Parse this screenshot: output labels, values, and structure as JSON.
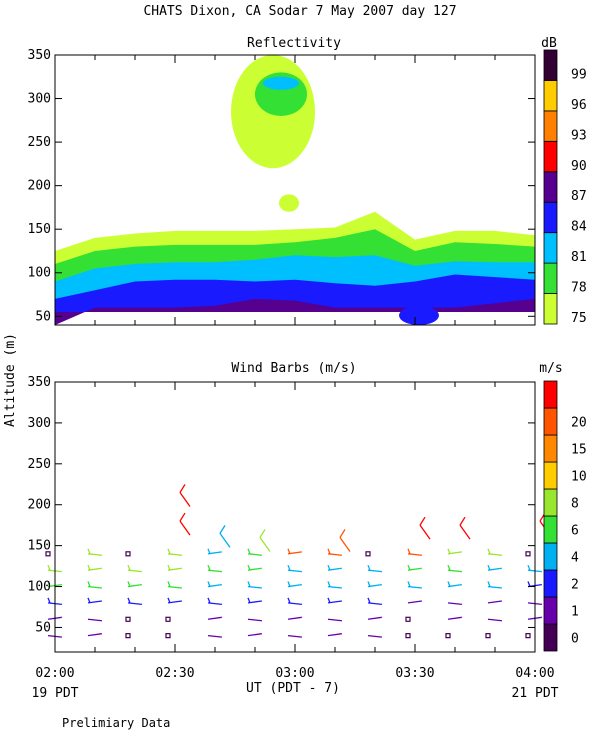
{
  "header": {
    "title": "CHATS Dixon, CA  Sodar   7 May 2007  day 127",
    "footer_note": "Prelimiary Data"
  },
  "chart_data": [
    {
      "type": "heatmap",
      "title": "Reflectivity",
      "ylabel": "Altitude (m)",
      "ylim": [
        40,
        350
      ],
      "yticks": [
        50,
        100,
        150,
        200,
        250,
        300,
        350
      ],
      "colorbar_unit": "dB",
      "colorbar_levels": [
        "75",
        "78",
        "81",
        "84",
        "87",
        "90",
        "93",
        "96",
        "99"
      ],
      "colorbar_colors": [
        "#ccff33",
        "#33e033",
        "#00bfff",
        "#1a1aff",
        "#55008f",
        "#ff0000",
        "#ff7f00",
        "#ffcc00",
        "#330033"
      ],
      "times": [
        0,
        10,
        20,
        30,
        40,
        50,
        60,
        70,
        80,
        90,
        100,
        110,
        120
      ],
      "contours": [
        {
          "level": "75",
          "top": [
            125,
            140,
            145,
            148,
            148,
            148,
            150,
            152,
            170,
            138,
            148,
            148,
            143
          ]
        },
        {
          "level": "78",
          "top": [
            110,
            125,
            130,
            132,
            132,
            132,
            135,
            140,
            150,
            125,
            135,
            133,
            130
          ]
        },
        {
          "level": "81",
          "top": [
            90,
            105,
            110,
            112,
            112,
            115,
            120,
            118,
            120,
            108,
            113,
            112,
            112
          ]
        },
        {
          "level": "84",
          "top": [
            70,
            80,
            90,
            92,
            92,
            90,
            92,
            88,
            85,
            90,
            98,
            95,
            92
          ]
        },
        {
          "level": "87",
          "top": [
            40,
            60,
            60,
            60,
            62,
            70,
            68,
            60,
            60,
            60,
            60,
            65,
            70
          ]
        }
      ],
      "patches": [
        {
          "level": "75",
          "time_range": [
            44,
            65
          ],
          "alt_range": [
            220,
            350
          ]
        },
        {
          "level": "78",
          "time_range": [
            50,
            63
          ],
          "alt_range": [
            280,
            330
          ]
        },
        {
          "level": "81",
          "time_range": [
            52,
            61
          ],
          "alt_range": [
            310,
            325
          ]
        },
        {
          "level": "75",
          "time_range": [
            56,
            61
          ],
          "alt_range": [
            170,
            190
          ]
        },
        {
          "level": "84",
          "time_range": [
            86,
            96
          ],
          "alt_range": [
            40,
            62
          ]
        }
      ]
    },
    {
      "type": "scatter",
      "title": "Wind Barbs (m/s)",
      "xlabel": "UT  (PDT - 7)",
      "ylabel": "Altitude (m)",
      "ylim": [
        20,
        350
      ],
      "yticks": [
        50,
        100,
        150,
        200,
        250,
        300,
        350
      ],
      "xlim": [
        0,
        120
      ],
      "xticks": [
        {
          "t": 0,
          "label": "02:00"
        },
        {
          "t": 30,
          "label": "02:30"
        },
        {
          "t": 60,
          "label": "03:00"
        },
        {
          "t": 90,
          "label": "03:30"
        },
        {
          "t": 120,
          "label": "04:00"
        }
      ],
      "x_sub_labels": [
        {
          "t": 0,
          "label": "19 PDT"
        },
        {
          "t": 120,
          "label": "21 PDT"
        }
      ],
      "colorbar_unit": "m/s",
      "colorbar_levels": [
        "0",
        "1",
        "2",
        "4",
        "6",
        "8",
        "10",
        "15",
        "20"
      ],
      "colorbar_colors": [
        "#440055",
        "#6600aa",
        "#1a1aff",
        "#00b0f0",
        "#33e033",
        "#99e62e",
        "#ffcc00",
        "#ff8800",
        "#ff5500",
        "#ff0000"
      ],
      "times": [
        0,
        10,
        20,
        30,
        40,
        50,
        60,
        70,
        80,
        90,
        100,
        110,
        120
      ],
      "altitudes": [
        40,
        60,
        80,
        100,
        120,
        140
      ],
      "barbs": [
        [
          1,
          1,
          2,
          4,
          5,
          0
        ],
        [
          1,
          1,
          2,
          4,
          5,
          5
        ],
        [
          0,
          0,
          2,
          4,
          5,
          0
        ],
        [
          0,
          0,
          2,
          4,
          5,
          5
        ],
        [
          1,
          1,
          2,
          3,
          4,
          3
        ],
        [
          1,
          1,
          2,
          3,
          4,
          4
        ],
        [
          1,
          1,
          2,
          3,
          3,
          8
        ],
        [
          1,
          1,
          2,
          3,
          3,
          8
        ],
        [
          1,
          1,
          2,
          3,
          3,
          0
        ],
        [
          0,
          0,
          1,
          3,
          4,
          8
        ],
        [
          0,
          1,
          1,
          3,
          4,
          5
        ],
        [
          0,
          1,
          1,
          3,
          3,
          5
        ],
        [
          0,
          1,
          1,
          2,
          3,
          0
        ]
      ],
      "upper_barbs": [
        {
          "t": 33,
          "alt": 215,
          "speed": 15
        },
        {
          "t": 33,
          "alt": 180,
          "speed": 15
        },
        {
          "t": 43,
          "alt": 165,
          "speed": 3
        },
        {
          "t": 53,
          "alt": 160,
          "speed": 5
        },
        {
          "t": 73,
          "alt": 160,
          "speed": 8
        },
        {
          "t": 93,
          "alt": 175,
          "speed": 10
        },
        {
          "t": 103,
          "alt": 175,
          "speed": 10
        },
        {
          "t": 123,
          "alt": 180,
          "speed": 10
        }
      ]
    }
  ]
}
